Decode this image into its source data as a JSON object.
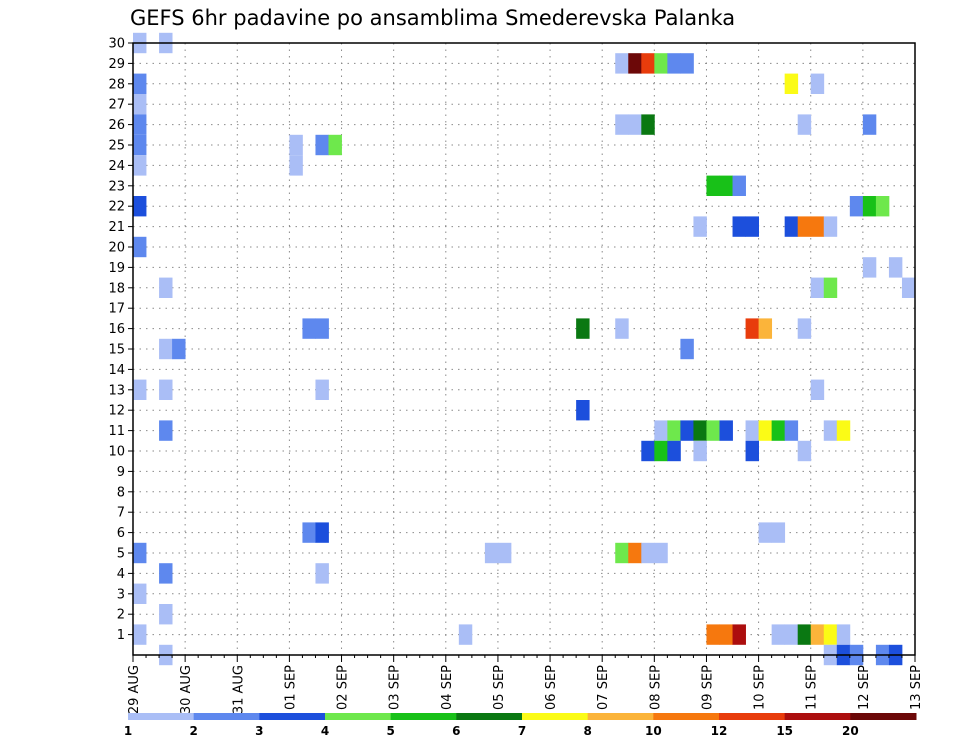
{
  "chart_data": {
    "type": "heatmap",
    "title": "GEFS 6hr padavine po ansamblima Smederevska Palanka",
    "xlabel": "",
    "ylabel": "",
    "x_ticks": [
      "29 AUG",
      "30 AUG",
      "31 AUG",
      "01 SEP",
      "02 SEP",
      "03 SEP",
      "04 SEP",
      "05 SEP",
      "06 SEP",
      "07 SEP",
      "08 SEP",
      "09 SEP",
      "10 SEP",
      "11 SEP",
      "12 SEP",
      "13 SEP"
    ],
    "x_range_days": [
      0,
      15
    ],
    "x_step_days": 0.25,
    "y_ticks": [
      1,
      2,
      3,
      4,
      5,
      6,
      7,
      8,
      9,
      10,
      11,
      12,
      13,
      14,
      15,
      16,
      17,
      18,
      19,
      20,
      21,
      22,
      23,
      24,
      25,
      26,
      27,
      28,
      29,
      30
    ],
    "ylim": [
      0,
      30
    ],
    "grid": "dotted",
    "legend_position": "bottom",
    "color_levels": [
      {
        "min": 1,
        "color": "#aabef6"
      },
      {
        "min": 2,
        "color": "#5e88ee"
      },
      {
        "min": 3,
        "color": "#1c4fdc"
      },
      {
        "min": 4,
        "color": "#6ee84c"
      },
      {
        "min": 5,
        "color": "#18c118"
      },
      {
        "min": 6,
        "color": "#0a7812"
      },
      {
        "min": 7,
        "color": "#fbfb16"
      },
      {
        "min": 8,
        "color": "#fbb43a"
      },
      {
        "min": 10,
        "color": "#f6780e"
      },
      {
        "min": 12,
        "color": "#e83c0c"
      },
      {
        "min": 15,
        "color": "#ac0e0e"
      },
      {
        "min": 20,
        "color": "#6c0808"
      }
    ],
    "legend_labels": [
      "1",
      "2",
      "3",
      "4",
      "5",
      "6",
      "7",
      "8",
      "10",
      "12",
      "15",
      "20"
    ],
    "cells": [
      {
        "member": 30,
        "day": 0.0,
        "level": 1
      },
      {
        "member": 30,
        "day": 0.5,
        "level": 1
      },
      {
        "member": 29,
        "day": 9.25,
        "level": 1
      },
      {
        "member": 29,
        "day": 9.5,
        "level": 20
      },
      {
        "member": 29,
        "day": 9.75,
        "level": 12
      },
      {
        "member": 29,
        "day": 10.0,
        "level": 4
      },
      {
        "member": 29,
        "day": 10.25,
        "level": 2
      },
      {
        "member": 29,
        "day": 10.5,
        "level": 2
      },
      {
        "member": 28,
        "day": 0.0,
        "level": 2
      },
      {
        "member": 28,
        "day": 12.5,
        "level": 7
      },
      {
        "member": 28,
        "day": 13.0,
        "level": 1
      },
      {
        "member": 27,
        "day": 0.0,
        "level": 1
      },
      {
        "member": 26,
        "day": 0.0,
        "level": 2
      },
      {
        "member": 26,
        "day": 9.25,
        "level": 1
      },
      {
        "member": 26,
        "day": 9.5,
        "level": 1
      },
      {
        "member": 26,
        "day": 9.75,
        "level": 6
      },
      {
        "member": 26,
        "day": 12.75,
        "level": 1
      },
      {
        "member": 26,
        "day": 14.0,
        "level": 2
      },
      {
        "member": 25,
        "day": 0.0,
        "level": 2
      },
      {
        "member": 25,
        "day": 3.0,
        "level": 1
      },
      {
        "member": 25,
        "day": 3.5,
        "level": 2
      },
      {
        "member": 25,
        "day": 3.75,
        "level": 4
      },
      {
        "member": 24,
        "day": 0.0,
        "level": 1
      },
      {
        "member": 24,
        "day": 3.0,
        "level": 1
      },
      {
        "member": 23,
        "day": 11.0,
        "level": 5
      },
      {
        "member": 23,
        "day": 11.25,
        "level": 5
      },
      {
        "member": 23,
        "day": 11.5,
        "level": 2
      },
      {
        "member": 22,
        "day": 0.0,
        "level": 3
      },
      {
        "member": 22,
        "day": 13.75,
        "level": 2
      },
      {
        "member": 22,
        "day": 14.0,
        "level": 5
      },
      {
        "member": 22,
        "day": 14.25,
        "level": 4
      },
      {
        "member": 21,
        "day": 10.75,
        "level": 1
      },
      {
        "member": 21,
        "day": 11.5,
        "level": 3
      },
      {
        "member": 21,
        "day": 11.75,
        "level": 3
      },
      {
        "member": 21,
        "day": 12.5,
        "level": 3
      },
      {
        "member": 21,
        "day": 12.75,
        "level": 10
      },
      {
        "member": 21,
        "day": 13.0,
        "level": 10
      },
      {
        "member": 21,
        "day": 13.25,
        "level": 1
      },
      {
        "member": 20,
        "day": 0.0,
        "level": 2
      },
      {
        "member": 19,
        "day": 14.0,
        "level": 1
      },
      {
        "member": 19,
        "day": 14.5,
        "level": 1
      },
      {
        "member": 18,
        "day": 0.5,
        "level": 1
      },
      {
        "member": 18,
        "day": 13.0,
        "level": 1
      },
      {
        "member": 18,
        "day": 13.25,
        "level": 4
      },
      {
        "member": 18,
        "day": 14.75,
        "level": 1
      },
      {
        "member": 16,
        "day": 3.25,
        "level": 2
      },
      {
        "member": 16,
        "day": 3.5,
        "level": 2
      },
      {
        "member": 16,
        "day": 8.5,
        "level": 6
      },
      {
        "member": 16,
        "day": 9.25,
        "level": 1
      },
      {
        "member": 16,
        "day": 11.75,
        "level": 12
      },
      {
        "member": 16,
        "day": 12.0,
        "level": 8
      },
      {
        "member": 16,
        "day": 12.75,
        "level": 1
      },
      {
        "member": 15,
        "day": 0.5,
        "level": 1
      },
      {
        "member": 15,
        "day": 0.75,
        "level": 2
      },
      {
        "member": 15,
        "day": 10.5,
        "level": 2
      },
      {
        "member": 13,
        "day": 0.0,
        "level": 1
      },
      {
        "member": 13,
        "day": 0.5,
        "level": 1
      },
      {
        "member": 13,
        "day": 3.5,
        "level": 1
      },
      {
        "member": 13,
        "day": 13.0,
        "level": 1
      },
      {
        "member": 12,
        "day": 8.5,
        "level": 3
      },
      {
        "member": 11,
        "day": 0.5,
        "level": 2
      },
      {
        "member": 11,
        "day": 10.0,
        "level": 1
      },
      {
        "member": 11,
        "day": 10.25,
        "level": 4
      },
      {
        "member": 11,
        "day": 10.5,
        "level": 3
      },
      {
        "member": 11,
        "day": 10.75,
        "level": 6
      },
      {
        "member": 11,
        "day": 11.0,
        "level": 4
      },
      {
        "member": 11,
        "day": 11.25,
        "level": 3
      },
      {
        "member": 11,
        "day": 11.75,
        "level": 1
      },
      {
        "member": 11,
        "day": 12.0,
        "level": 7
      },
      {
        "member": 11,
        "day": 12.25,
        "level": 5
      },
      {
        "member": 11,
        "day": 12.5,
        "level": 2
      },
      {
        "member": 11,
        "day": 13.25,
        "level": 1
      },
      {
        "member": 11,
        "day": 13.5,
        "level": 7
      },
      {
        "member": 10,
        "day": 9.75,
        "level": 3
      },
      {
        "member": 10,
        "day": 10.0,
        "level": 5
      },
      {
        "member": 10,
        "day": 10.25,
        "level": 3
      },
      {
        "member": 10,
        "day": 10.75,
        "level": 1
      },
      {
        "member": 10,
        "day": 11.75,
        "level": 3
      },
      {
        "member": 10,
        "day": 12.75,
        "level": 1
      },
      {
        "member": 6,
        "day": 3.25,
        "level": 2
      },
      {
        "member": 6,
        "day": 3.5,
        "level": 3
      },
      {
        "member": 6,
        "day": 12.0,
        "level": 1
      },
      {
        "member": 6,
        "day": 12.25,
        "level": 1
      },
      {
        "member": 5,
        "day": 0.0,
        "level": 2
      },
      {
        "member": 5,
        "day": 6.75,
        "level": 1
      },
      {
        "member": 5,
        "day": 7.0,
        "level": 1
      },
      {
        "member": 5,
        "day": 9.25,
        "level": 4
      },
      {
        "member": 5,
        "day": 9.5,
        "level": 10
      },
      {
        "member": 5,
        "day": 9.75,
        "level": 1
      },
      {
        "member": 5,
        "day": 10.0,
        "level": 1
      },
      {
        "member": 4,
        "day": 0.5,
        "level": 2
      },
      {
        "member": 4,
        "day": 3.5,
        "level": 1
      },
      {
        "member": 3,
        "day": 0.0,
        "level": 1
      },
      {
        "member": 2,
        "day": 0.5,
        "level": 1
      },
      {
        "member": 1,
        "day": 0.0,
        "level": 1
      },
      {
        "member": 1,
        "day": 6.25,
        "level": 1
      },
      {
        "member": 1,
        "day": 11.0,
        "level": 10
      },
      {
        "member": 1,
        "day": 11.25,
        "level": 10
      },
      {
        "member": 1,
        "day": 11.5,
        "level": 15
      },
      {
        "member": 1,
        "day": 12.25,
        "level": 1
      },
      {
        "member": 1,
        "day": 12.5,
        "level": 1
      },
      {
        "member": 1,
        "day": 12.75,
        "level": 6
      },
      {
        "member": 1,
        "day": 13.0,
        "level": 8
      },
      {
        "member": 1,
        "day": 13.25,
        "level": 7
      },
      {
        "member": 1,
        "day": 13.5,
        "level": 1
      },
      {
        "member": 0,
        "day": 0.5,
        "level": 1
      },
      {
        "member": 0,
        "day": 13.25,
        "level": 1
      },
      {
        "member": 0,
        "day": 13.5,
        "level": 3
      },
      {
        "member": 0,
        "day": 13.75,
        "level": 2
      },
      {
        "member": 0,
        "day": 14.25,
        "level": 2
      },
      {
        "member": 0,
        "day": 14.5,
        "level": 3
      }
    ]
  }
}
